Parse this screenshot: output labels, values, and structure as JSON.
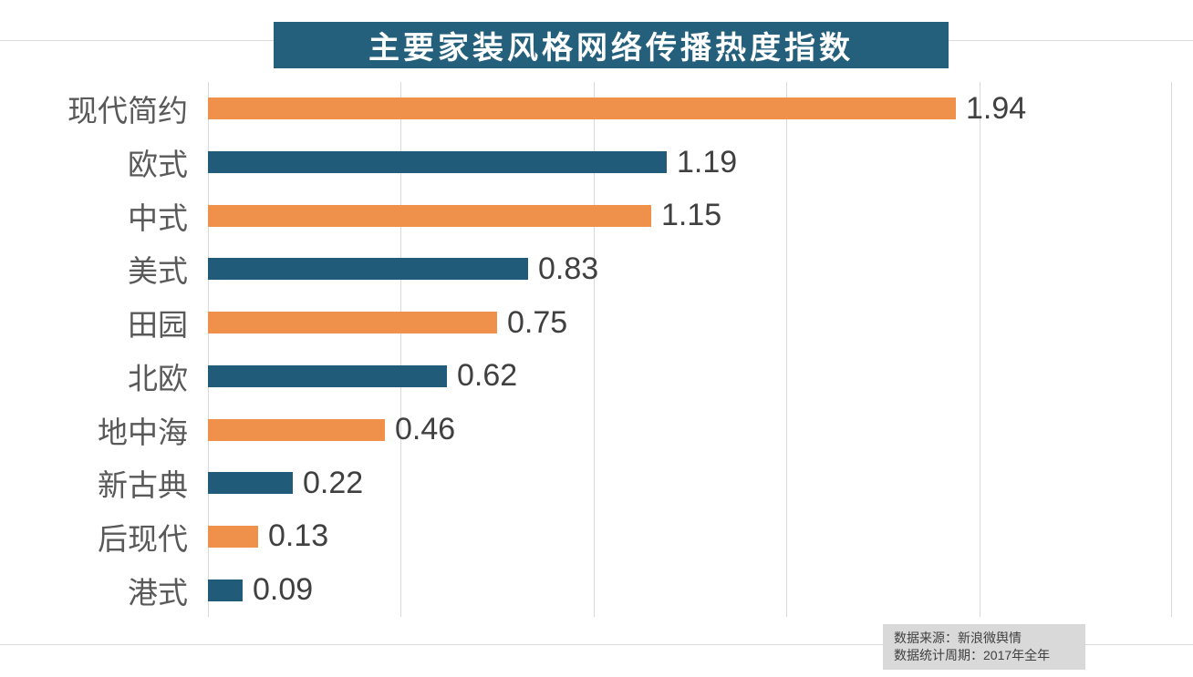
{
  "title": {
    "text": "主要家装风格网络传播热度指数",
    "bg_color": "#24607c",
    "text_color": "#ffffff"
  },
  "chart_data": {
    "type": "bar",
    "orientation": "horizontal",
    "title": "主要家装风格网络传播热度指数",
    "categories": [
      "现代简约",
      "欧式",
      "中式",
      "美式",
      "田园",
      "北欧",
      "地中海",
      "新古典",
      "后现代",
      "港式"
    ],
    "values": [
      1.94,
      1.19,
      1.15,
      0.83,
      0.75,
      0.62,
      0.46,
      0.22,
      0.13,
      0.09
    ],
    "value_labels": [
      "1.94",
      "1.19",
      "1.15",
      "0.83",
      "0.75",
      "0.62",
      "0.46",
      "0.22",
      "0.13",
      "0.09"
    ],
    "xlim": [
      0,
      2.5
    ],
    "gridline_interval": 0.5,
    "grid": "vertical-major",
    "legend": "none",
    "bar_colors_alternating": [
      "#f0914b",
      "#205c7a"
    ],
    "label_color": "#595959",
    "value_color": "#404040",
    "grid_color": "#d9d9d9"
  },
  "footnote": {
    "lines": [
      "数据来源：新浪微舆情",
      "数据统计周期：2017年全年"
    ],
    "bg_color": "#d9d9d9"
  }
}
